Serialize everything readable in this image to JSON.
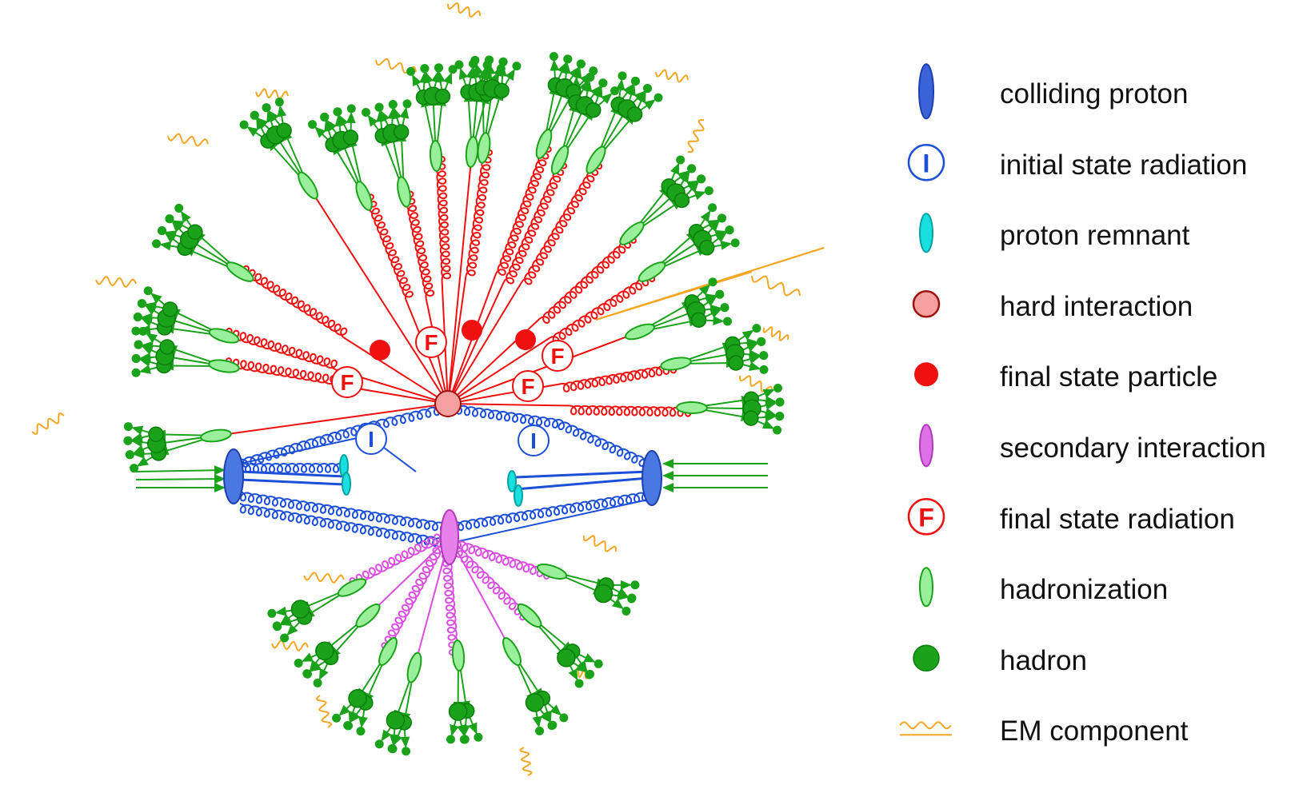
{
  "markers": {
    "final_state_radiation": "F",
    "initial_state_radiation": "I"
  },
  "legend": [
    {
      "label": "colliding proton",
      "icon": "colliding-proton-icon",
      "color": "#3a63d8"
    },
    {
      "label": "initial state radiation",
      "icon": "initial-state-radiation-icon",
      "color": "#1b4fd8"
    },
    {
      "label": "proton remnant",
      "icon": "proton-remnant-icon",
      "color": "#19e0e0"
    },
    {
      "label": "hard interaction",
      "icon": "hard-interaction-icon",
      "color": "#f4a0a0"
    },
    {
      "label": "final state particle",
      "icon": "final-state-particle-icon",
      "color": "#f01010"
    },
    {
      "label": "secondary interaction",
      "icon": "secondary-interaction-icon",
      "color": "#e070e8"
    },
    {
      "label": "final state radiation",
      "icon": "final-state-radiation-icon",
      "color": "#f01010"
    },
    {
      "label": "hadronization",
      "icon": "hadronization-icon",
      "color": "#9af09a"
    },
    {
      "label": "hadron",
      "icon": "hadron-icon",
      "color": "#1aa31a"
    },
    {
      "label": "EM component",
      "icon": "em-component-icon",
      "color": "#f5a623"
    }
  ]
}
